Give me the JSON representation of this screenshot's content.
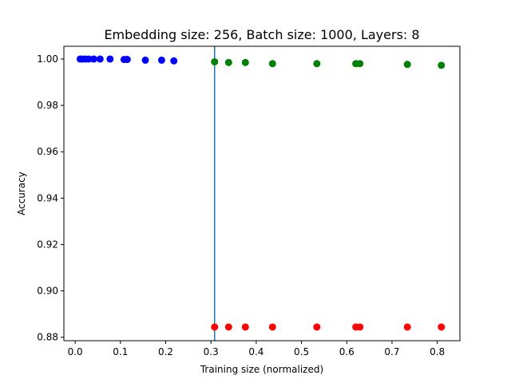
{
  "chart_data": {
    "type": "scatter",
    "title": "Embedding size: 256, Batch size: 1000, Layers: 8",
    "xlabel": "Training size (normalized)",
    "ylabel": "Accuracy",
    "xlim": [
      -0.025,
      0.85
    ],
    "ylim": [
      0.8785,
      1.0055
    ],
    "xticks": [
      "0.0",
      "0.1",
      "0.2",
      "0.3",
      "0.4",
      "0.5",
      "0.6",
      "0.7",
      "0.8"
    ],
    "yticks": [
      "0.88",
      "0.90",
      "0.92",
      "0.94",
      "0.96",
      "0.98",
      "1.00"
    ],
    "grid": false,
    "vline": {
      "x": 0.308,
      "color": "#1f77b4"
    },
    "series": [
      {
        "color": "#0000ff",
        "x": [
          0.011,
          0.016,
          0.023,
          0.03,
          0.041,
          0.055,
          0.077,
          0.108,
          0.115,
          0.155,
          0.191,
          0.218
        ],
        "y": [
          1.0,
          1.0,
          1.0,
          1.0,
          1.0,
          1.0,
          1.0,
          0.9998,
          0.9998,
          0.9995,
          0.9995,
          0.9992
        ]
      },
      {
        "color": "#008000",
        "x": [
          0.308,
          0.339,
          0.376,
          0.436,
          0.534,
          0.62,
          0.629,
          0.734,
          0.809
        ],
        "y": [
          0.9988,
          0.9985,
          0.9985,
          0.998,
          0.998,
          0.998,
          0.998,
          0.9977,
          0.9973
        ]
      },
      {
        "color": "#ff0000",
        "x": [
          0.308,
          0.339,
          0.376,
          0.436,
          0.534,
          0.62,
          0.629,
          0.734,
          0.809
        ],
        "y": [
          0.8844,
          0.8844,
          0.8844,
          0.8844,
          0.8844,
          0.8844,
          0.8844,
          0.8844,
          0.8844
        ]
      }
    ]
  }
}
